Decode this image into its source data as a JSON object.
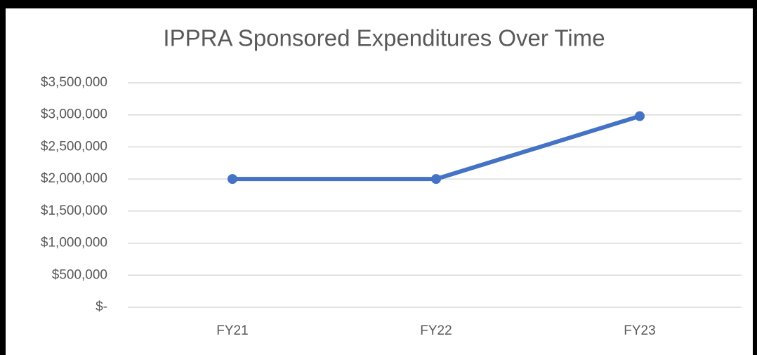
{
  "chart_data": {
    "type": "line",
    "title": "IPPRA Sponsored Expenditures Over Time",
    "categories": [
      "FY21",
      "FY22",
      "FY23"
    ],
    "values": [
      2000000,
      2000000,
      2980000
    ],
    "color": "#4472c4",
    "ylim": [
      0,
      3500000
    ],
    "yticks": [
      {
        "value": 0,
        "label": "$-"
      },
      {
        "value": 500000,
        "label": "$500,000"
      },
      {
        "value": 1000000,
        "label": "$1,000,000"
      },
      {
        "value": 1500000,
        "label": "$1,500,000"
      },
      {
        "value": 2000000,
        "label": "$2,000,000"
      },
      {
        "value": 2500000,
        "label": "$2,500,000"
      },
      {
        "value": 3000000,
        "label": "$3,000,000"
      },
      {
        "value": 3500000,
        "label": "$3,500,000"
      }
    ],
    "grid": true
  }
}
